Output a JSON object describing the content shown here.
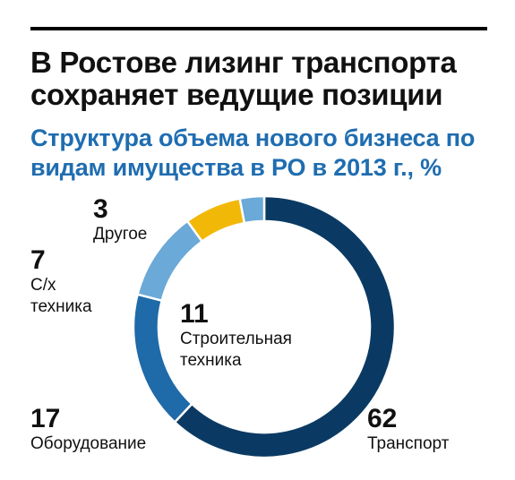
{
  "header": {
    "title": "В Ростове лизинг транспорта сохраняет ведущие позиции",
    "subtitle": "Структура объема нового бизнеса по видам имущества в РО в 2013 г., %"
  },
  "chart_data": {
    "type": "pie",
    "variant": "donut",
    "title": "Структура объема нового бизнеса по видам имущества в РО в 2013 г., %",
    "categories": [
      "Транспорт",
      "Оборудование",
      "Строительная техника",
      "С/х техника",
      "Другое"
    ],
    "values": [
      62,
      17,
      11,
      7,
      3
    ],
    "colors": [
      "#0a3a63",
      "#1f6aa8",
      "#6aa9d8",
      "#f2b807",
      "#6aa9d8"
    ],
    "value_labels": [
      "62",
      "17",
      "11",
      "7",
      "3"
    ],
    "label_lines": [
      [
        "Транспорт"
      ],
      [
        "Оборудование"
      ],
      [
        "Строительная",
        "техника"
      ],
      [
        "С/х",
        "техника"
      ],
      [
        "Другое"
      ]
    ]
  }
}
